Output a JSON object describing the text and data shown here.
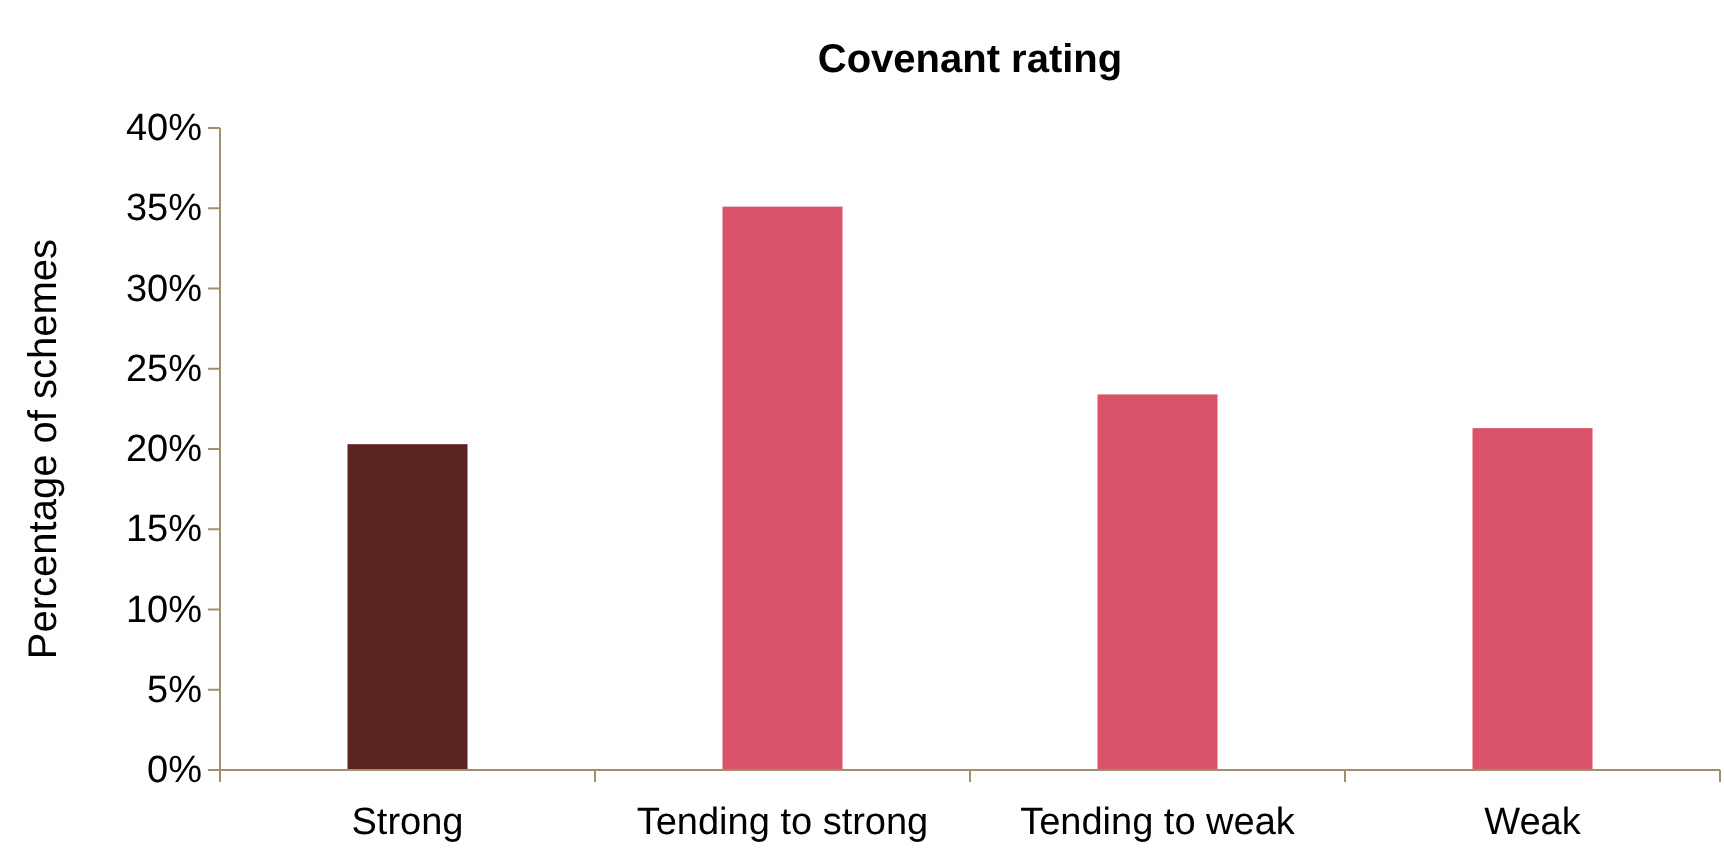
{
  "chart_data": {
    "type": "bar",
    "title": "Covenant rating",
    "ylabel": "Percentage of schemes",
    "categories": [
      "Strong",
      "Tending to strong",
      "Tending to weak",
      "Weak"
    ],
    "values": [
      20.3,
      35.1,
      23.4,
      21.3
    ],
    "colors": [
      "#5c2420",
      "#db536a",
      "#db536a",
      "#db536a"
    ],
    "ylim": [
      0,
      40
    ],
    "yticks": [
      {
        "value": 0,
        "label": "0%"
      },
      {
        "value": 5,
        "label": "5%"
      },
      {
        "value": 10,
        "label": "10%"
      },
      {
        "value": 15,
        "label": "15%"
      },
      {
        "value": 20,
        "label": "20%"
      },
      {
        "value": 25,
        "label": "25%"
      },
      {
        "value": 30,
        "label": "30%"
      },
      {
        "value": 35,
        "label": "35%"
      },
      {
        "value": 40,
        "label": "40%"
      }
    ],
    "grid": false,
    "legend": false
  }
}
